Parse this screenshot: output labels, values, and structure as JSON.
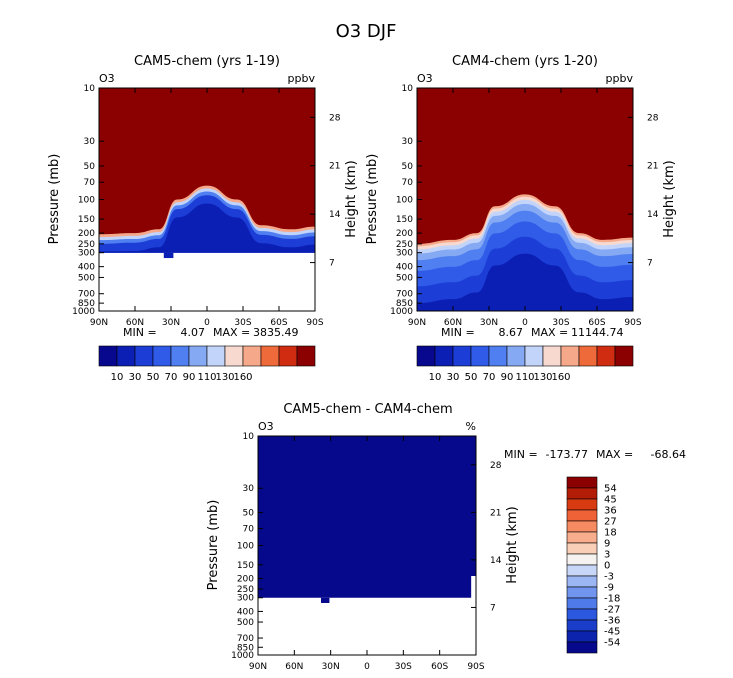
{
  "figure_title": "O3 DJF",
  "colors": {
    "bg": "#ffffff",
    "frame": "#000000",
    "palette_12": [
      "#08088e",
      "#0b1fb5",
      "#1c3ed6",
      "#2f5be8",
      "#4f7ff0",
      "#86a9f4",
      "#c2d4f9",
      "#f7d9cf",
      "#f6a88a",
      "#ee6a3a",
      "#d02c12",
      "#8b0000"
    ],
    "palette_diff": [
      "#8b0000",
      "#b31d07",
      "#d83a12",
      "#ef6238",
      "#f68b62",
      "#f8ad8c",
      "#facfb8",
      "#f6f2ef",
      "#c8d7f8",
      "#9cb5f3",
      "#7195ee",
      "#4f7aea",
      "#2c58e0",
      "#1a3ec9",
      "#0b23ad",
      "#07098c"
    ]
  },
  "chart_data": [
    {
      "type": "heatmap",
      "title": "CAM5-chem (yrs 1-19)",
      "corner_left": "O3",
      "corner_right": "ppbv",
      "ylabel": "Pressure (mb)",
      "ylabel_right": "Height (km)",
      "x_ticks": [
        "90N",
        "60N",
        "30N",
        "0",
        "30S",
        "60S",
        "90S"
      ],
      "y_ticks": [
        "10",
        "30",
        "50",
        "70",
        "100",
        "150",
        "200",
        "250",
        "300",
        "400",
        "500",
        "700",
        "850",
        "1000"
      ],
      "y_right_ticks": [
        "28",
        "21",
        "14",
        "7"
      ],
      "min_label": "MIN =",
      "min_value": "4.07",
      "max_label": "MAX =",
      "max_value": "3835.49",
      "xlim": [
        90,
        -90
      ],
      "ylim_mb": [
        10,
        1000
      ],
      "levels": [
        10,
        20,
        30,
        40,
        50,
        60,
        70,
        80,
        90,
        100,
        110,
        120,
        130,
        140,
        150,
        160
      ],
      "tropopause_mb_at": [
        {
          "lat": 90,
          "mb": 205
        },
        {
          "lat": 60,
          "mb": 200
        },
        {
          "lat": 40,
          "mb": 185
        },
        {
          "lat": 25,
          "mb": 100
        },
        {
          "lat": 0,
          "mb": 75
        },
        {
          "lat": -25,
          "mb": 100
        },
        {
          "lat": -45,
          "mb": 170
        },
        {
          "lat": -70,
          "mb": 185
        },
        {
          "lat": -90,
          "mb": 175
        }
      ],
      "data_bottom_mb": 300,
      "colorbar_labels": [
        "10",
        "30",
        "50",
        "70",
        "90",
        "110",
        "130",
        "160"
      ]
    },
    {
      "type": "heatmap",
      "title": "CAM4-chem (yrs 1-20)",
      "corner_left": "O3",
      "corner_right": "ppbv",
      "ylabel": "Pressure (mb)",
      "ylabel_right": "Height (km)",
      "x_ticks": [
        "90N",
        "60N",
        "30N",
        "0",
        "30S",
        "60S",
        "90S"
      ],
      "y_ticks": [
        "10",
        "30",
        "50",
        "70",
        "100",
        "150",
        "200",
        "250",
        "300",
        "400",
        "500",
        "700",
        "850",
        "1000"
      ],
      "y_right_ticks": [
        "28",
        "21",
        "14",
        "7"
      ],
      "min_label": "MIN =",
      "min_value": "8.67",
      "max_label": "MAX =",
      "max_value": "11144.74",
      "xlim": [
        90,
        -90
      ],
      "ylim_mb": [
        10,
        1000
      ],
      "levels": [
        10,
        20,
        30,
        40,
        50,
        60,
        70,
        80,
        90,
        100,
        110,
        120,
        130,
        140,
        150,
        160
      ],
      "tropopause_mb_at": [
        {
          "lat": 90,
          "mb": 250
        },
        {
          "lat": 60,
          "mb": 230
        },
        {
          "lat": 40,
          "mb": 200
        },
        {
          "lat": 25,
          "mb": 115
        },
        {
          "lat": 0,
          "mb": 90
        },
        {
          "lat": -25,
          "mb": 115
        },
        {
          "lat": -45,
          "mb": 200
        },
        {
          "lat": -65,
          "mb": 230
        },
        {
          "lat": -90,
          "mb": 220
        }
      ],
      "data_bottom_mb": 1000,
      "colorbar_labels": [
        "10",
        "30",
        "50",
        "70",
        "90",
        "110",
        "130",
        "160"
      ]
    },
    {
      "type": "heatmap",
      "title": "CAM5-chem - CAM4-chem",
      "corner_left": "O3",
      "corner_right": "%",
      "ylabel": "Pressure (mb)",
      "ylabel_right": "Height (km)",
      "x_ticks": [
        "90N",
        "60N",
        "30N",
        "0",
        "30S",
        "60S",
        "90S"
      ],
      "y_ticks": [
        "10",
        "30",
        "50",
        "70",
        "100",
        "150",
        "200",
        "250",
        "300",
        "400",
        "500",
        "700",
        "850",
        "1000"
      ],
      "y_right_ticks": [
        "28",
        "21",
        "14",
        "7"
      ],
      "min_label": "MIN =",
      "min_value": "-173.77",
      "max_label": "MAX =",
      "max_value": "-68.64",
      "xlim": [
        90,
        -90
      ],
      "ylim_mb": [
        10,
        1000
      ],
      "data_bottom_mb": 300,
      "fill_value_level": "-54",
      "colorbar_labels": [
        "54",
        "45",
        "36",
        "27",
        "18",
        "9",
        "3",
        "0",
        "-3",
        "-9",
        "-18",
        "-27",
        "-36",
        "-45",
        "-54"
      ]
    }
  ]
}
